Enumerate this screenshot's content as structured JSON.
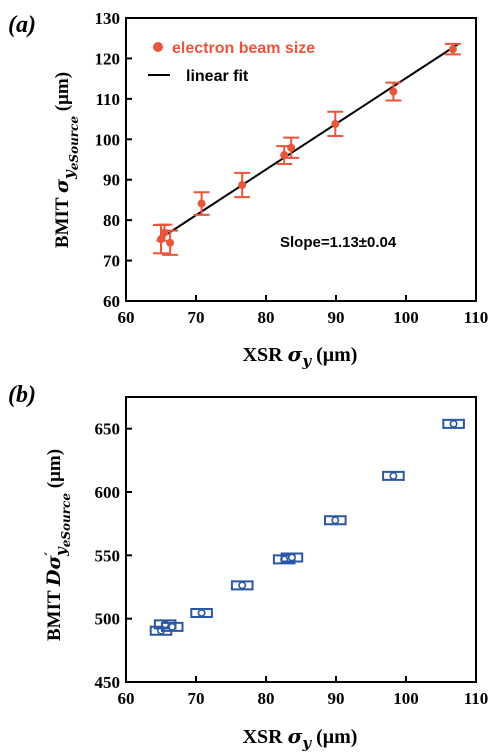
{
  "chart_data": [
    {
      "type": "scatter",
      "panel_label": "(a)",
      "xlabel": "XSR σy (μm)",
      "xlabel_parts": {
        "prefix": "XSR ",
        "symbol": "σ",
        "sub": "y",
        "suffix": " (μm)"
      },
      "ylabel": "BMIT σyeSource (μm)",
      "ylabel_parts": {
        "prefix": "BMIT ",
        "symbol": "σ",
        "sub": "y",
        "subsub": "eSource",
        "suffix": " (μm)"
      },
      "xlim": [
        60,
        110
      ],
      "ylim": [
        60,
        130
      ],
      "xticks": [
        "60",
        "70",
        "80",
        "90",
        "100",
        "110"
      ],
      "yticks": [
        "60",
        "70",
        "80",
        "90",
        "100",
        "110",
        "120",
        "130"
      ],
      "grid": false,
      "legend_position": "top-left",
      "legend": {
        "series_label": "electron beam size",
        "fit_label": "linear fit"
      },
      "annotation": "Slope=1.13±0.04",
      "colors": {
        "series": "#e8553a",
        "fit": "#000000"
      },
      "series": [
        {
          "name": "electron beam size",
          "marker": "filled-circle",
          "points": [
            {
              "x": 65.0,
              "y": 75.3,
              "err": 3.5
            },
            {
              "x": 65.5,
              "y": 76.9,
              "err": 2.0
            },
            {
              "x": 66.3,
              "y": 74.4,
              "err": 3.0
            },
            {
              "x": 70.8,
              "y": 84.1,
              "err": 2.8
            },
            {
              "x": 76.6,
              "y": 88.7,
              "err": 3.0
            },
            {
              "x": 82.6,
              "y": 96.1,
              "err": 2.2
            },
            {
              "x": 83.6,
              "y": 97.9,
              "err": 2.5
            },
            {
              "x": 89.9,
              "y": 103.8,
              "err": 3.0
            },
            {
              "x": 98.2,
              "y": 111.8,
              "err": 2.2
            },
            {
              "x": 106.7,
              "y": 122.3,
              "err": 1.3
            }
          ]
        }
      ],
      "fit": {
        "x": [
          64.5,
          107.5
        ],
        "y": [
          75.0,
          123.6
        ]
      }
    },
    {
      "type": "scatter",
      "panel_label": "(b)",
      "xlabel": "XSR σy (μm)",
      "xlabel_parts": {
        "prefix": "XSR ",
        "symbol": "σ",
        "sub": "y",
        "suffix": " (μm)"
      },
      "ylabel": "BMIT Dσ'yeSource (μm)",
      "ylabel_parts": {
        "prefix": "BMIT ",
        "symbol": "Dσ",
        "prime": "′",
        "sub": "y",
        "subsub": "eSource",
        "suffix": " (μm)"
      },
      "xlim": [
        60,
        110
      ],
      "ylim": [
        450,
        675
      ],
      "xticks": [
        "60",
        "70",
        "80",
        "90",
        "100",
        "110"
      ],
      "yticks": [
        "450",
        "500",
        "550",
        "600",
        "650"
      ],
      "ytick_values": [
        450,
        500,
        550,
        600,
        650
      ],
      "grid": false,
      "colors": {
        "series": "#2a57a5"
      },
      "series": [
        {
          "name": "",
          "marker": "open-circle",
          "points": [
            {
              "x": 65.0,
              "y": 490.5,
              "xerr": 0.9
            },
            {
              "x": 65.6,
              "y": 495.5,
              "xerr": 0.9
            },
            {
              "x": 66.6,
              "y": 493.5,
              "xerr": 0.9
            },
            {
              "x": 70.8,
              "y": 504.5,
              "xerr": 0.9
            },
            {
              "x": 76.6,
              "y": 526.3,
              "xerr": 0.9
            },
            {
              "x": 82.6,
              "y": 546.8,
              "xerr": 0.9
            },
            {
              "x": 83.7,
              "y": 548.3,
              "xerr": 0.9
            },
            {
              "x": 89.9,
              "y": 577.7,
              "xerr": 0.9
            },
            {
              "x": 98.2,
              "y": 612.7,
              "xerr": 0.9
            },
            {
              "x": 106.8,
              "y": 653.8,
              "xerr": 0.9
            }
          ]
        }
      ]
    }
  ]
}
